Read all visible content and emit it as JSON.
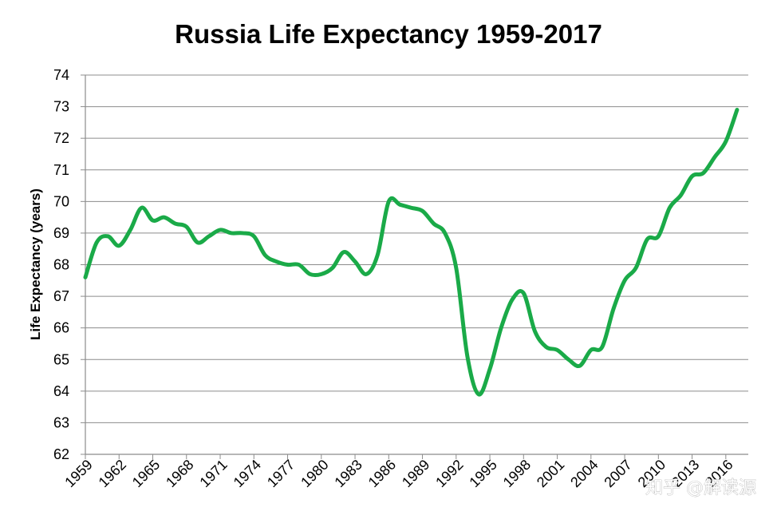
{
  "chart_data": {
    "type": "line",
    "title": "Russia Life Expectancy 1959-2017",
    "ylabel": "Life Expectancy (years)",
    "xlabel": "",
    "ylim": [
      62,
      74
    ],
    "yticks": [
      62,
      63,
      64,
      65,
      66,
      67,
      68,
      69,
      70,
      71,
      72,
      73,
      74
    ],
    "xticks": [
      1959,
      1962,
      1965,
      1968,
      1971,
      1974,
      1977,
      1980,
      1983,
      1986,
      1989,
      1992,
      1995,
      1998,
      2001,
      2004,
      2007,
      2010,
      2013,
      2016
    ],
    "grid": "horizontal",
    "legend": "none",
    "series": [
      {
        "color": "#1aaa48",
        "x": [
          1959,
          1960,
          1961,
          1962,
          1963,
          1964,
          1965,
          1966,
          1967,
          1968,
          1969,
          1970,
          1971,
          1972,
          1973,
          1974,
          1975,
          1976,
          1977,
          1978,
          1979,
          1980,
          1981,
          1982,
          1983,
          1984,
          1985,
          1986,
          1987,
          1988,
          1989,
          1990,
          1991,
          1992,
          1993,
          1994,
          1995,
          1996,
          1997,
          1998,
          1999,
          2000,
          2001,
          2002,
          2003,
          2004,
          2005,
          2006,
          2007,
          2008,
          2009,
          2010,
          2011,
          2012,
          2013,
          2014,
          2015,
          2016,
          2017
        ],
        "values": [
          67.6,
          68.7,
          68.9,
          68.6,
          69.1,
          69.8,
          69.4,
          69.5,
          69.3,
          69.2,
          68.7,
          68.9,
          69.1,
          69.0,
          69.0,
          68.9,
          68.3,
          68.1,
          68.0,
          68.0,
          67.7,
          67.7,
          67.9,
          68.4,
          68.1,
          67.7,
          68.3,
          70.0,
          69.9,
          69.8,
          69.7,
          69.3,
          69.0,
          67.9,
          65.1,
          63.9,
          64.7,
          66.0,
          66.9,
          67.1,
          65.9,
          65.4,
          65.3,
          65.0,
          64.8,
          65.3,
          65.4,
          66.6,
          67.5,
          67.9,
          68.8,
          68.9,
          69.8,
          70.2,
          70.8,
          70.9,
          71.4,
          71.9,
          72.9
        ]
      }
    ]
  },
  "watermark": {
    "text": "知乎 @解读源"
  }
}
